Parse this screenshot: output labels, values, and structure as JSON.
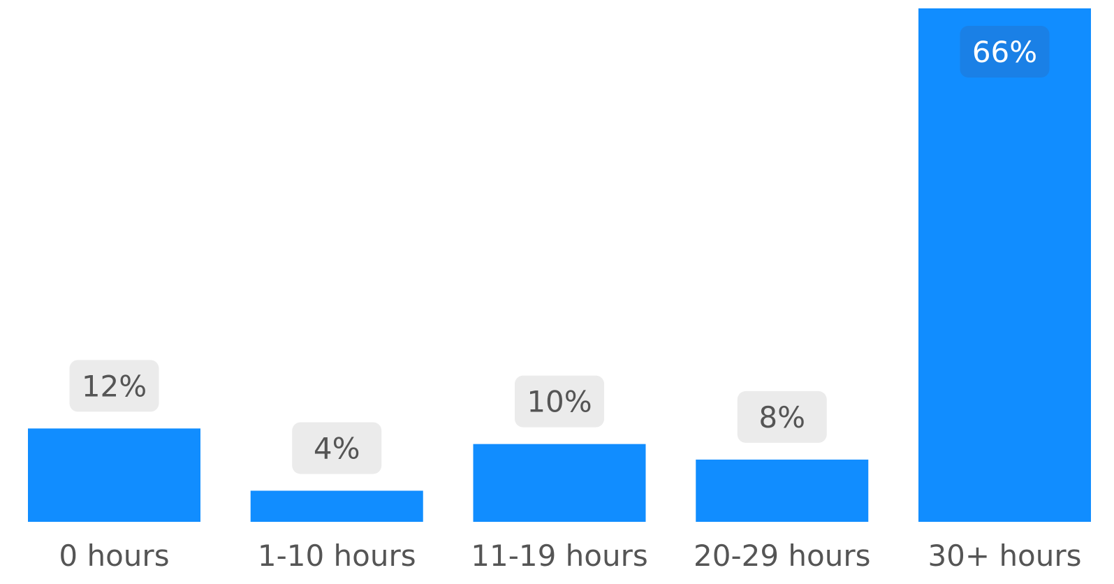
{
  "chart_data": {
    "type": "bar",
    "categories": [
      "0 hours",
      "1-10 hours",
      "11-19 hours",
      "20-29 hours",
      "30+ hours"
    ],
    "values": [
      12,
      4,
      10,
      8,
      66
    ],
    "data_labels": [
      "12%",
      "4%",
      "10%",
      "8%",
      "66%"
    ],
    "unit": "%",
    "ylim": [
      0,
      66
    ],
    "grid": false,
    "colors": {
      "bar": "#118dff",
      "label_bg": "#ebebeb",
      "label_bg_inside": "#1a80e6",
      "label_text": "#555555",
      "label_text_inside": "#ffffff",
      "tick_text": "#555555"
    }
  }
}
